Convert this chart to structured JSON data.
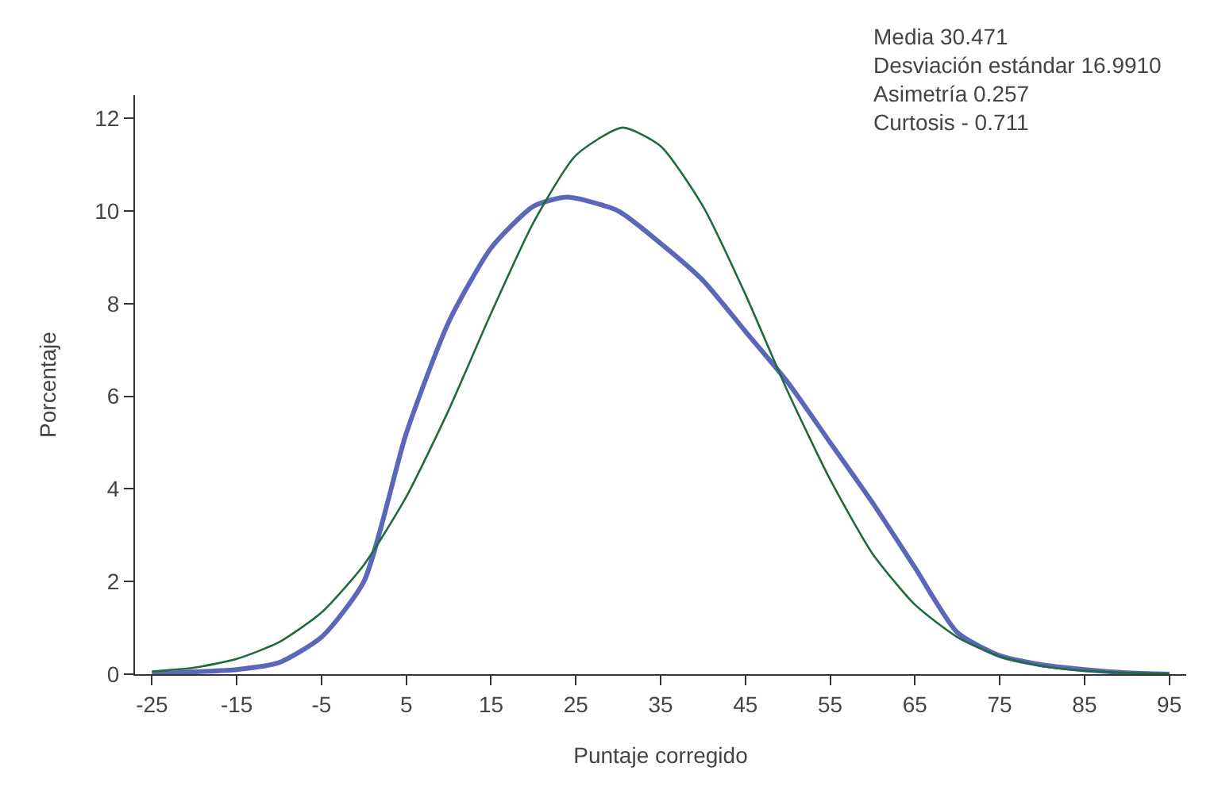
{
  "chart_data": {
    "type": "line",
    "xlabel": "Puntaje corregido",
    "ylabel": "Porcentaje",
    "x": [
      -25,
      -20,
      -15,
      -10,
      -5,
      0,
      5,
      10,
      15,
      20,
      24,
      30,
      35,
      40,
      45,
      50,
      55,
      60,
      65,
      70,
      75,
      80,
      85,
      90,
      95
    ],
    "series": [
      {
        "color": "#5b67b8",
        "values": [
          0,
          0.05,
          0.1,
          0.25,
          0.8,
          2.0,
          5.2,
          7.6,
          9.2,
          10.1,
          10.3,
          10.0,
          9.3,
          8.5,
          7.4,
          6.3,
          5.0,
          3.7,
          2.3,
          0.9,
          0.4,
          0.2,
          0.1,
          0.03,
          0
        ]
      },
      {
        "color": "#1e6b3c",
        "x": [
          -25,
          -20,
          -15,
          -10,
          -5,
          0,
          5,
          10,
          15,
          20,
          25,
          30.5,
          35,
          40,
          45,
          50,
          55,
          60,
          65,
          70,
          75,
          80,
          85,
          90,
          95
        ],
        "values": [
          0.06,
          0.14,
          0.33,
          0.69,
          1.33,
          2.36,
          3.83,
          5.7,
          7.79,
          9.75,
          11.2,
          11.8,
          11.4,
          10.1,
          8.2,
          6.1,
          4.2,
          2.6,
          1.5,
          0.8,
          0.38,
          0.17,
          0.07,
          0.03,
          0.01
        ]
      }
    ],
    "xlim": [
      -27,
      97
    ],
    "ylim": [
      0,
      12.5
    ],
    "xticks": [
      -25,
      -15,
      -5,
      5,
      15,
      25,
      35,
      45,
      55,
      65,
      75,
      85,
      95
    ],
    "yticks": [
      0,
      2,
      4,
      6,
      8,
      10,
      12
    ],
    "grid": false,
    "marker": "none",
    "line_style": "solid",
    "annotations": [
      "Media 30.471",
      "Desviación estándar 16.9910",
      "Asimetría 0.257",
      "Curtosis - 0.711"
    ]
  }
}
